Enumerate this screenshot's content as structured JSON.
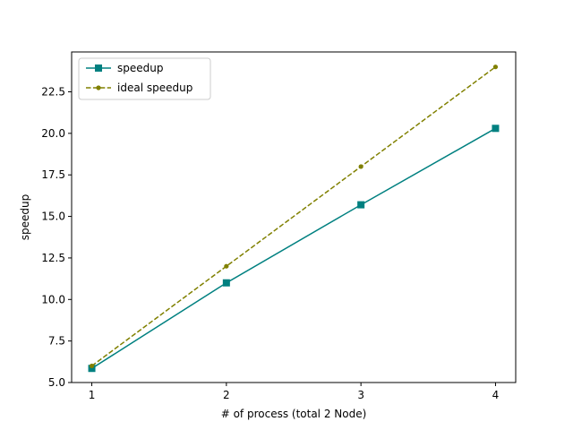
{
  "chart_data": {
    "type": "line",
    "title": "",
    "xlabel": "# of process (total 2 Node)",
    "ylabel": "speedup",
    "x": [
      1,
      2,
      3,
      4
    ],
    "xlim": [
      0.85,
      4.15
    ],
    "ylim": [
      5.0,
      24.9
    ],
    "xticks": [
      1,
      2,
      3,
      4
    ],
    "xtick_labels": [
      "1",
      "2",
      "3",
      "4"
    ],
    "yticks": [
      5.0,
      7.5,
      10.0,
      12.5,
      15.0,
      17.5,
      20.0,
      22.5
    ],
    "ytick_labels": [
      "5.0",
      "7.5",
      "10.0",
      "12.5",
      "15.0",
      "17.5",
      "20.0",
      "22.5"
    ],
    "grid": false,
    "legend_position": "top-left",
    "series": [
      {
        "name": "speedup",
        "values": [
          5.85,
          11.0,
          15.7,
          20.3
        ],
        "color": "#008080",
        "line_style": "solid",
        "marker": "square"
      },
      {
        "name": "ideal speedup",
        "values": [
          6.0,
          12.0,
          18.0,
          24.0
        ],
        "color": "#808000",
        "line_style": "dashed",
        "marker": "circle"
      }
    ]
  }
}
